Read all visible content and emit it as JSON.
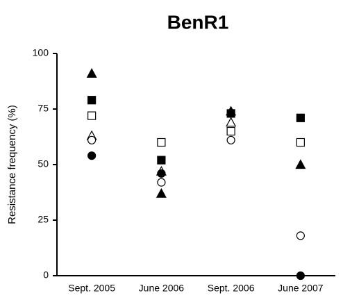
{
  "chart_data": {
    "type": "dot",
    "title": "BenR1",
    "y_label": "Resistance frequency (%)",
    "categories": [
      "Sept. 2005",
      "June 2006",
      "Sept. 2006",
      "June 2007"
    ],
    "ylim": [
      0,
      100
    ],
    "yticks": [
      0,
      25,
      50,
      75,
      100
    ],
    "series": [
      {
        "marker": "triangle",
        "filled": true,
        "color": "#000000",
        "values": [
          91,
          37,
          74,
          50
        ]
      },
      {
        "marker": "square",
        "filled": true,
        "color": "#000000",
        "values": [
          79,
          52,
          73,
          71
        ]
      },
      {
        "marker": "square",
        "filled": false,
        "color": "#000000",
        "values": [
          72,
          60,
          65,
          60
        ]
      },
      {
        "marker": "triangle",
        "filled": false,
        "color": "#000000",
        "values": [
          63,
          47,
          69,
          null
        ]
      },
      {
        "marker": "circle",
        "filled": false,
        "color": "#000000",
        "values": [
          61,
          42,
          61,
          18
        ]
      },
      {
        "marker": "circle",
        "filled": true,
        "color": "#000000",
        "values": [
          54,
          46,
          73,
          0
        ]
      }
    ]
  }
}
